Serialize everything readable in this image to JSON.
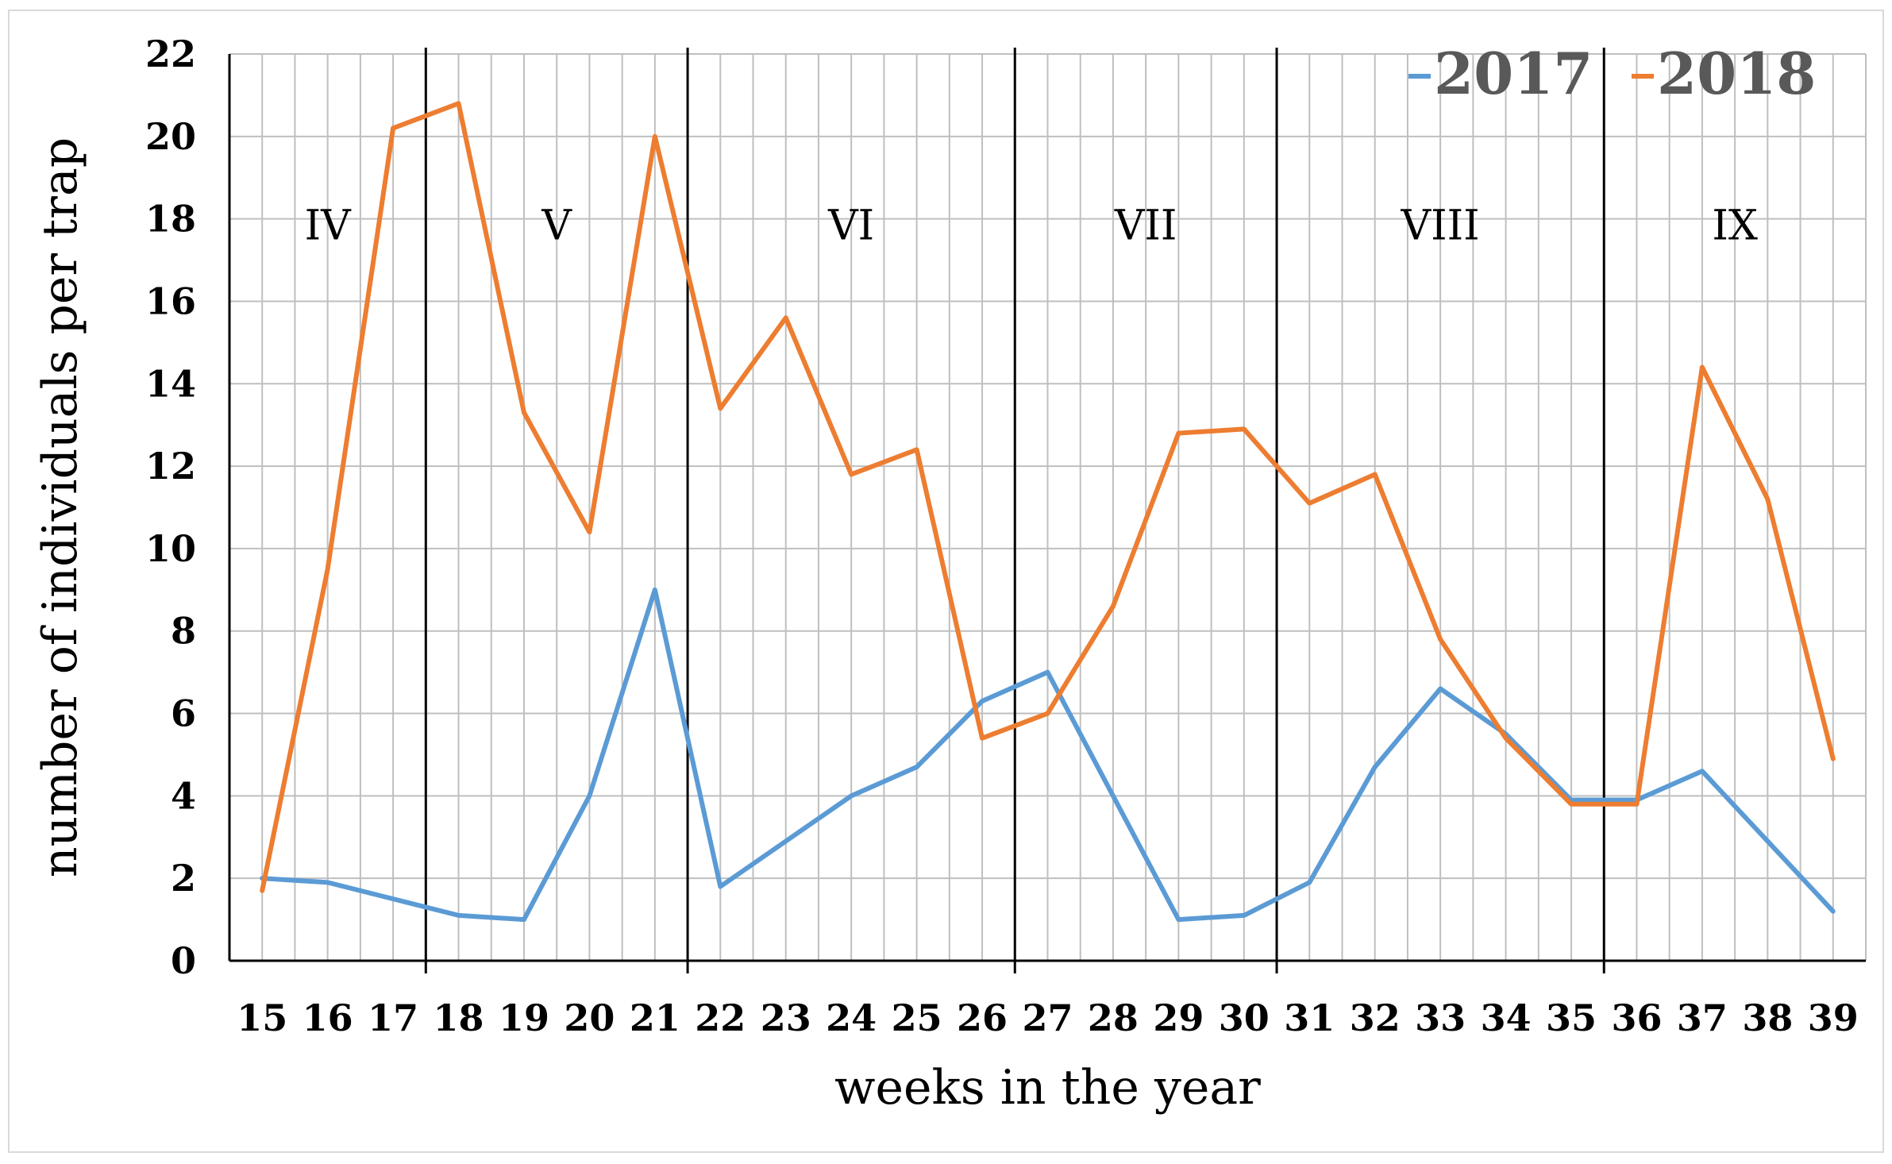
{
  "chart_data": {
    "type": "line",
    "xlabel": "weeks in the year",
    "ylabel": "number of individuals per trap",
    "x": [
      15,
      16,
      17,
      18,
      19,
      20,
      21,
      22,
      23,
      24,
      25,
      26,
      27,
      28,
      29,
      30,
      31,
      32,
      33,
      34,
      35,
      36,
      37,
      38,
      39
    ],
    "ylim": [
      0,
      22
    ],
    "yticks": [
      0,
      2,
      4,
      6,
      8,
      10,
      12,
      14,
      16,
      18,
      20,
      22
    ],
    "grid": true,
    "legend_position": "top-right",
    "series": [
      {
        "name": "2017",
        "color": "#5b9bd5",
        "values": [
          2.0,
          1.9,
          1.5,
          1.1,
          1.0,
          4.0,
          9.0,
          1.8,
          2.9,
          4.0,
          4.7,
          6.3,
          7.0,
          4.0,
          1.0,
          1.1,
          1.9,
          4.7,
          6.6,
          5.5,
          3.9,
          3.9,
          4.6,
          2.9,
          1.2
        ]
      },
      {
        "name": "2018",
        "color": "#ed7d31",
        "values": [
          1.7,
          9.5,
          20.2,
          20.8,
          13.3,
          10.4,
          20.0,
          13.4,
          15.6,
          11.8,
          12.4,
          5.4,
          6.0,
          8.6,
          12.8,
          12.9,
          11.1,
          11.8,
          7.8,
          5.4,
          3.8,
          3.8,
          14.4,
          11.2,
          4.9
        ]
      }
    ],
    "months": [
      {
        "label": "IV",
        "start": 14.5,
        "end": 17.5
      },
      {
        "label": "V",
        "start": 17.5,
        "end": 21.5
      },
      {
        "label": "VI",
        "start": 21.5,
        "end": 26.5
      },
      {
        "label": "VII",
        "start": 26.5,
        "end": 30.5
      },
      {
        "label": "VIII",
        "start": 30.5,
        "end": 35.5
      },
      {
        "label": "IX",
        "start": 35.5,
        "end": 39.5
      }
    ]
  }
}
